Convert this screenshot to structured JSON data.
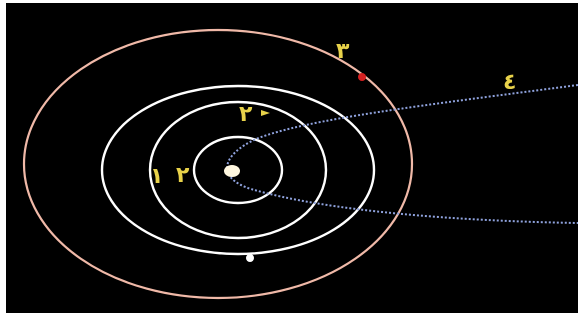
{
  "colors": {
    "background": "#000000",
    "outer_orbit": "#f0b9a8",
    "inner_orbits": "#ffffff",
    "comet_path": "#8fa2dd",
    "label": "#e8d24a",
    "planet_red": "#d42020",
    "sun": "#fff7e0"
  },
  "labels": {
    "orbit_1": "١",
    "orbit_2": "٢",
    "orbit_3": "٣",
    "orbit_4": "٤"
  },
  "labels_arrow": "٢"
}
